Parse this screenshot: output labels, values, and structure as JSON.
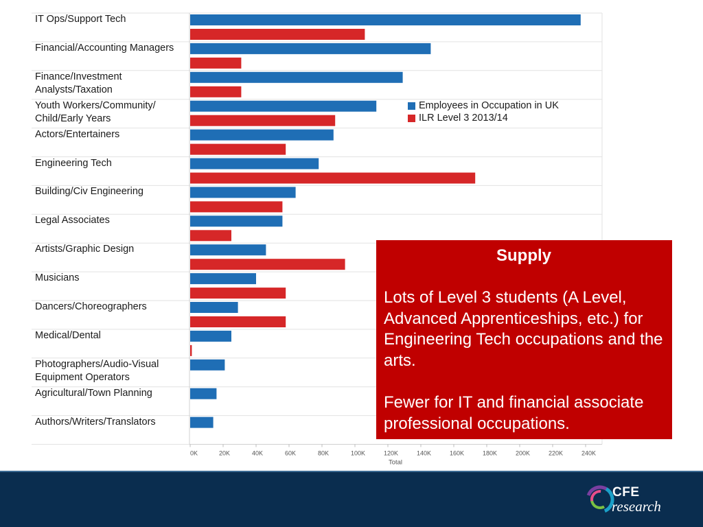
{
  "chart_data": {
    "type": "bar",
    "orientation": "horizontal",
    "categories": [
      "IT Ops/Support Tech",
      "Financial/Accounting Managers",
      "Finance/Investment\nAnalysts/Taxation",
      "Youth Workers/Community/\nChild/Early Years",
      "Actors/Entertainers",
      "Engineering Tech",
      "Building/Civ Engineering",
      "Legal Associates",
      "Artists/Graphic Design",
      "Musicians",
      "Dancers/Choreographers",
      "Medical/Dental",
      "Photographers/Audio-Visual\nEquipment Operators",
      "Agricultural/Town Planning",
      "Authors/Writers/Translators"
    ],
    "series": [
      {
        "name": "Employees in Occupation in UK",
        "color": "#1f6eb5",
        "values": [
          237000,
          146000,
          129000,
          113000,
          87000,
          78000,
          64000,
          56000,
          46000,
          40000,
          29000,
          25000,
          21000,
          16000,
          14000
        ]
      },
      {
        "name": "ILR Level 3 2013/14",
        "color": "#d62728",
        "values": [
          106000,
          31000,
          31000,
          88000,
          58000,
          173000,
          56000,
          25000,
          94000,
          58000,
          58000,
          1000,
          null,
          null,
          null
        ]
      }
    ],
    "xlabel": "Total",
    "xlim": [
      0,
      250000
    ],
    "xticks": [
      "0K",
      "20K",
      "40K",
      "60K",
      "80K",
      "100K",
      "120K",
      "140K",
      "160K",
      "180K",
      "200K",
      "220K",
      "240K"
    ],
    "xtick_values": [
      0,
      20000,
      40000,
      60000,
      80000,
      100000,
      120000,
      140000,
      160000,
      180000,
      200000,
      220000,
      240000
    ],
    "grid": "horizontal row dividers",
    "legend": "top-right"
  },
  "supply_box": {
    "title": "Supply",
    "paragraphs": [
      "Lots of Level 3 students (A Level, Advanced Apprenticeships, etc.) for Engineering Tech occupations and the arts.",
      "Fewer for IT and financial associate professional occupations."
    ],
    "color": "#c00000"
  },
  "footer": {
    "color": "#0a2d4f",
    "logo": {
      "text_top": "CFE",
      "text_bottom": "research",
      "icon": "cfe-ring-logo-icon"
    }
  }
}
